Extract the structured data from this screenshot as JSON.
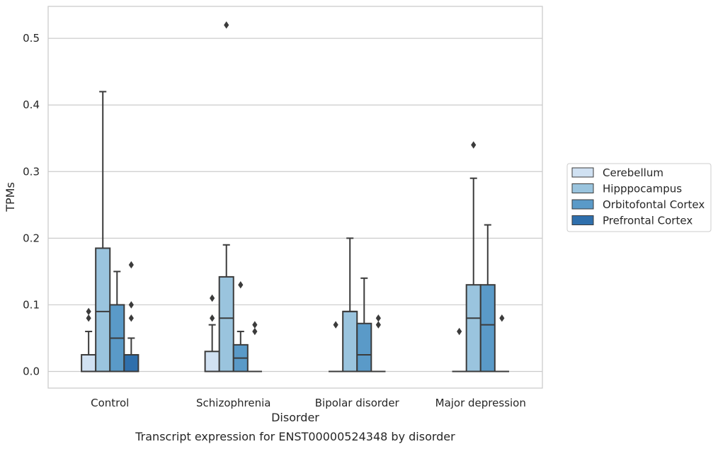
{
  "chart_data": {
    "type": "box",
    "caption": "Transcript expression for ENST00000524348 by disorder",
    "xlabel": "Disorder",
    "ylabel": "TPMs",
    "ylim": [
      -0.025,
      0.548
    ],
    "yticks": [
      "0.0",
      "0.1",
      "0.2",
      "0.3",
      "0.4",
      "0.5"
    ],
    "grid": true,
    "legend_position": "right",
    "categories": [
      "Control",
      "Schizophrenia",
      "Bipolar disorder",
      "Major depression"
    ],
    "series": [
      {
        "name": "Cerebellum",
        "color": "#d0e1f2",
        "boxes": [
          {
            "q1": 0.0,
            "median": 0.0,
            "q3": 0.025,
            "whisker_low": 0.0,
            "whisker_high": 0.06,
            "outliers": [
              0.08,
              0.09
            ]
          },
          {
            "q1": 0.0,
            "median": 0.0,
            "q3": 0.03,
            "whisker_low": 0.0,
            "whisker_high": 0.07,
            "outliers": [
              0.08,
              0.11
            ]
          },
          {
            "q1": 0.0,
            "median": 0.0,
            "q3": 0.0,
            "whisker_low": 0.0,
            "whisker_high": 0.0,
            "outliers": [
              0.07
            ]
          },
          {
            "q1": 0.0,
            "median": 0.0,
            "q3": 0.0,
            "whisker_low": 0.0,
            "whisker_high": 0.0,
            "outliers": [
              0.06
            ]
          }
        ]
      },
      {
        "name": "Hipppocampus",
        "color": "#9ac4de",
        "boxes": [
          {
            "q1": 0.0,
            "median": 0.09,
            "q3": 0.185,
            "whisker_low": 0.0,
            "whisker_high": 0.42,
            "outliers": []
          },
          {
            "q1": 0.0,
            "median": 0.08,
            "q3": 0.142,
            "whisker_low": 0.0,
            "whisker_high": 0.19,
            "outliers": [
              0.52
            ]
          },
          {
            "q1": 0.0,
            "median": 0.09,
            "q3": 0.09,
            "whisker_low": 0.0,
            "whisker_high": 0.2,
            "outliers": []
          },
          {
            "q1": 0.0,
            "median": 0.08,
            "q3": 0.13,
            "whisker_low": 0.0,
            "whisker_high": 0.29,
            "outliers": [
              0.34
            ]
          }
        ]
      },
      {
        "name": "Orbitofontal Cortex",
        "color": "#5a9ac8",
        "boxes": [
          {
            "q1": 0.0,
            "median": 0.05,
            "q3": 0.1,
            "whisker_low": 0.0,
            "whisker_high": 0.15,
            "outliers": []
          },
          {
            "q1": 0.0,
            "median": 0.02,
            "q3": 0.04,
            "whisker_low": 0.0,
            "whisker_high": 0.06,
            "outliers": [
              0.13
            ]
          },
          {
            "q1": 0.0,
            "median": 0.025,
            "q3": 0.072,
            "whisker_low": 0.0,
            "whisker_high": 0.14,
            "outliers": []
          },
          {
            "q1": 0.0,
            "median": 0.07,
            "q3": 0.13,
            "whisker_low": 0.0,
            "whisker_high": 0.22,
            "outliers": []
          }
        ]
      },
      {
        "name": "Prefrontal Cortex",
        "color": "#2f6fac",
        "boxes": [
          {
            "q1": 0.0,
            "median": 0.0,
            "q3": 0.025,
            "whisker_low": 0.0,
            "whisker_high": 0.05,
            "outliers": [
              0.08,
              0.1,
              0.16
            ]
          },
          {
            "q1": 0.0,
            "median": 0.0,
            "q3": 0.0,
            "whisker_low": 0.0,
            "whisker_high": 0.0,
            "outliers": [
              0.06,
              0.07
            ]
          },
          {
            "q1": 0.0,
            "median": 0.0,
            "q3": 0.0,
            "whisker_low": 0.0,
            "whisker_high": 0.0,
            "outliers": [
              0.07,
              0.08
            ]
          },
          {
            "q1": 0.0,
            "median": 0.0,
            "q3": 0.0,
            "whisker_low": 0.0,
            "whisker_high": 0.0,
            "outliers": [
              0.08
            ]
          }
        ]
      }
    ]
  }
}
